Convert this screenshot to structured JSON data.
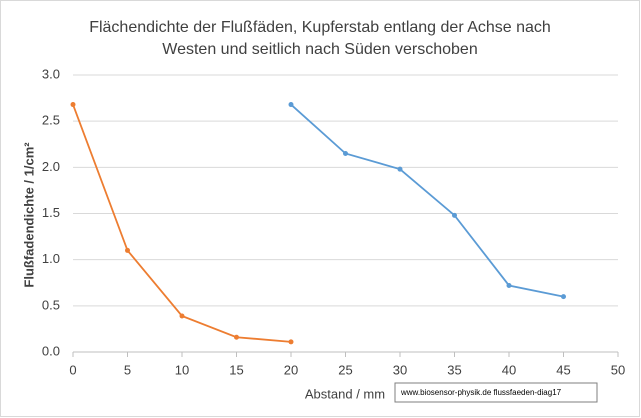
{
  "chart_data": {
    "type": "line",
    "title": [
      "Flächendichte der Flußfäden, Kupferstab entlang der Achse nach",
      "Westen und seitlich nach Süden verschoben"
    ],
    "x_label": "Abstand / mm",
    "y_label": "Flußfadendichte / 1/cm²",
    "annotation": "www.biosensor-physik.de  flussfaeden-diag17",
    "series": [
      {
        "color": "#ed7d31",
        "x": [
          0,
          5,
          10,
          15,
          20
        ],
        "values": [
          2.68,
          1.1,
          0.39,
          0.16,
          0.11
        ]
      },
      {
        "color": "#5b9bd5",
        "x": [
          20,
          25,
          30,
          35,
          40,
          45
        ],
        "values": [
          2.68,
          2.15,
          1.98,
          1.48,
          0.72,
          0.6
        ]
      }
    ],
    "xlim": [
      0,
      50
    ],
    "xticks": [
      0,
      5,
      10,
      15,
      20,
      25,
      30,
      35,
      40,
      45,
      50
    ],
    "ylim": [
      0,
      3
    ],
    "yticks": [
      {
        "value": 0,
        "label": "0.0"
      },
      0.5,
      {
        "value": 1,
        "label": "1.0"
      },
      1.5,
      {
        "value": 2,
        "label": "2.0"
      },
      2.5,
      {
        "value": 3,
        "label": "3.0"
      }
    ],
    "grid": true
  }
}
